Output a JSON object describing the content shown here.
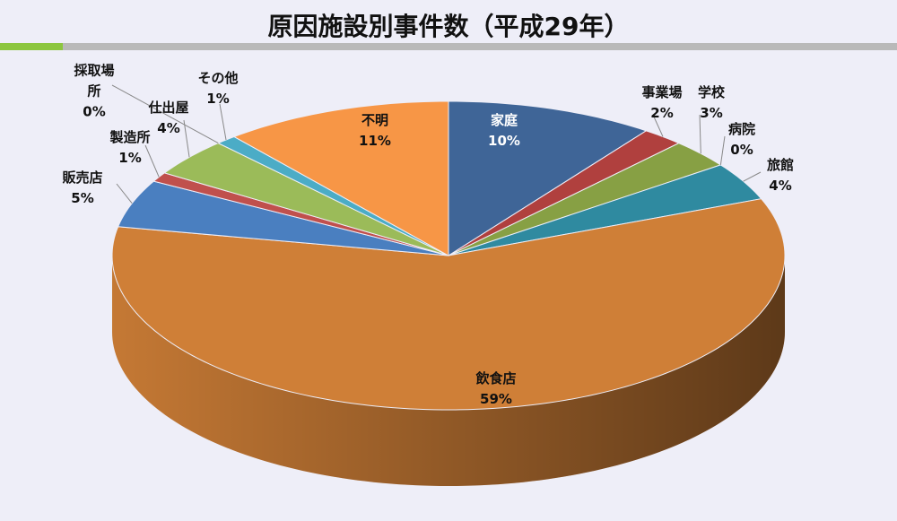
{
  "chart_data": {
    "type": "pie3d",
    "title": "原因施設別事件数（平成29年）",
    "categories": [
      "家庭",
      "事業場",
      "学校",
      "病院",
      "旅館",
      "飲食店",
      "販売店",
      "製造所",
      "仕出屋",
      "採取場所",
      "その他",
      "不明"
    ],
    "values": [
      10,
      2,
      3,
      0,
      4,
      59,
      5,
      1,
      4,
      0,
      1,
      11
    ],
    "value_labels": [
      "10%",
      "2%",
      "3%",
      "0%",
      "4%",
      "59%",
      "5%",
      "1%",
      "4%",
      "0%",
      "1%",
      "11%"
    ],
    "colors": [
      "#3f6597",
      "#b0403e",
      "#87a044",
      "#6b4f8f",
      "#2f8aa0",
      "#cf7f37",
      "#4a7fc0",
      "#c0504d",
      "#9bbb59",
      "#7b5fa0",
      "#4bacc6",
      "#f79646"
    ]
  }
}
